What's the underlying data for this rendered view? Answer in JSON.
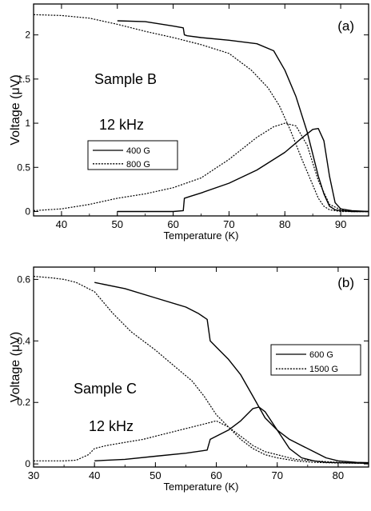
{
  "chart_data": [
    {
      "type": "line",
      "panel_label": "(a)",
      "xlabel": "Temperature  (K)",
      "ylabel": "Voltage  (μV)",
      "xlim": [
        35,
        95
      ],
      "ylim": [
        -0.05,
        2.35
      ],
      "xticks": [
        40,
        50,
        60,
        70,
        80,
        90
      ],
      "yticks": [
        0,
        0.5,
        1,
        1.5,
        2
      ],
      "ytick_labels": [
        "0",
        "0.5",
        "1",
        "1.5",
        "2"
      ],
      "annotations": [
        "Sample B",
        "12 kHz"
      ],
      "legend_placement": "center-left",
      "grid": false,
      "series": [
        {
          "name": "400 G",
          "style": "solid",
          "role": "upper",
          "x": [
            50,
            55,
            60,
            61.8,
            62,
            62.5,
            65,
            70,
            75,
            78,
            80,
            82,
            84,
            86,
            87,
            88,
            89,
            90,
            92,
            95
          ],
          "y": [
            2.16,
            2.15,
            2.1,
            2.08,
            2.0,
            1.99,
            1.97,
            1.94,
            1.9,
            1.82,
            1.6,
            1.3,
            0.9,
            0.4,
            0.2,
            0.06,
            0.02,
            0.01,
            0.0,
            0.0
          ]
        },
        {
          "name": "400 G",
          "style": "solid",
          "role": "lower",
          "x": [
            50,
            55,
            60,
            61.8,
            62,
            63,
            65,
            70,
            75,
            80,
            83,
            85,
            86,
            87,
            88,
            89,
            90,
            92,
            95
          ],
          "y": [
            0.0,
            0.0,
            0.0,
            0.01,
            0.15,
            0.17,
            0.21,
            0.32,
            0.47,
            0.67,
            0.83,
            0.93,
            0.94,
            0.8,
            0.4,
            0.1,
            0.03,
            0.01,
            0.0
          ]
        },
        {
          "name": "800 G",
          "style": "dotted",
          "role": "upper",
          "x": [
            35,
            40,
            45,
            50,
            55,
            60,
            65,
            70,
            74,
            77,
            79,
            81,
            83,
            84,
            85,
            86,
            87,
            88,
            90,
            92,
            95
          ],
          "y": [
            2.23,
            2.22,
            2.19,
            2.12,
            2.04,
            1.97,
            1.89,
            1.79,
            1.6,
            1.4,
            1.2,
            0.92,
            0.6,
            0.45,
            0.3,
            0.15,
            0.06,
            0.02,
            0.0,
            0.0,
            0.0
          ]
        },
        {
          "name": "800 G",
          "style": "dotted",
          "role": "lower",
          "x": [
            35,
            40,
            45,
            50,
            55,
            60,
            65,
            70,
            75,
            78,
            80,
            82,
            84,
            86,
            88,
            90,
            92,
            95
          ],
          "y": [
            0.01,
            0.03,
            0.08,
            0.15,
            0.2,
            0.27,
            0.38,
            0.59,
            0.84,
            0.96,
            1.0,
            0.97,
            0.75,
            0.35,
            0.08,
            0.02,
            0.0,
            0.0
          ]
        }
      ]
    },
    {
      "type": "line",
      "panel_label": "(b)",
      "xlabel": "Temperature  (K)",
      "ylabel": "Voltage  (μV)",
      "xlim": [
        30,
        85
      ],
      "ylim": [
        -0.01,
        0.64
      ],
      "xticks": [
        30,
        40,
        50,
        60,
        70,
        80
      ],
      "yticks": [
        0,
        0.2,
        0.4,
        0.6
      ],
      "ytick_labels": [
        "0",
        "0.2",
        "0.4",
        "0.6"
      ],
      "annotations": [
        "Sample C",
        "12 kHz"
      ],
      "legend_placement": "right",
      "grid": false,
      "series": [
        {
          "name": "600 G",
          "style": "solid",
          "role": "upper",
          "x": [
            40,
            45,
            50,
            55,
            57,
            58.5,
            59,
            60,
            62,
            64,
            66,
            68,
            70,
            72,
            74,
            76,
            78,
            80,
            83,
            85
          ],
          "y": [
            0.59,
            0.57,
            0.54,
            0.51,
            0.49,
            0.47,
            0.4,
            0.38,
            0.34,
            0.29,
            0.22,
            0.15,
            0.11,
            0.08,
            0.06,
            0.04,
            0.02,
            0.01,
            0.005,
            0.004
          ]
        },
        {
          "name": "600 G",
          "style": "solid",
          "role": "lower",
          "x": [
            40,
            45,
            50,
            55,
            58.5,
            59,
            60,
            62,
            64,
            66,
            67,
            68,
            70,
            72,
            74,
            76,
            78,
            80,
            83,
            85
          ],
          "y": [
            0.01,
            0.015,
            0.025,
            0.035,
            0.045,
            0.08,
            0.09,
            0.11,
            0.14,
            0.18,
            0.185,
            0.17,
            0.11,
            0.05,
            0.02,
            0.01,
            0.005,
            0.004,
            0.003,
            0.002
          ]
        },
        {
          "name": "1500 G",
          "style": "dotted",
          "role": "upper",
          "x": [
            30,
            33,
            35,
            37,
            40,
            43,
            46,
            50,
            53,
            56,
            58,
            60,
            62,
            64,
            66,
            68,
            70,
            73,
            76,
            80,
            85
          ],
          "y": [
            0.61,
            0.605,
            0.6,
            0.59,
            0.56,
            0.49,
            0.43,
            0.37,
            0.32,
            0.27,
            0.22,
            0.16,
            0.12,
            0.09,
            0.06,
            0.04,
            0.03,
            0.015,
            0.01,
            0.005,
            0.003
          ]
        },
        {
          "name": "1500 G",
          "style": "dotted",
          "role": "lower",
          "x": [
            30,
            33,
            35,
            37,
            39,
            40,
            42,
            45,
            48,
            50,
            52,
            54,
            56,
            58,
            60,
            62,
            64,
            66,
            68,
            70,
            73,
            76,
            80,
            85
          ],
          "y": [
            0.01,
            0.01,
            0.01,
            0.012,
            0.03,
            0.05,
            0.06,
            0.07,
            0.08,
            0.09,
            0.1,
            0.11,
            0.12,
            0.13,
            0.14,
            0.12,
            0.08,
            0.05,
            0.03,
            0.02,
            0.01,
            0.005,
            0.003,
            0.002
          ]
        }
      ]
    }
  ]
}
